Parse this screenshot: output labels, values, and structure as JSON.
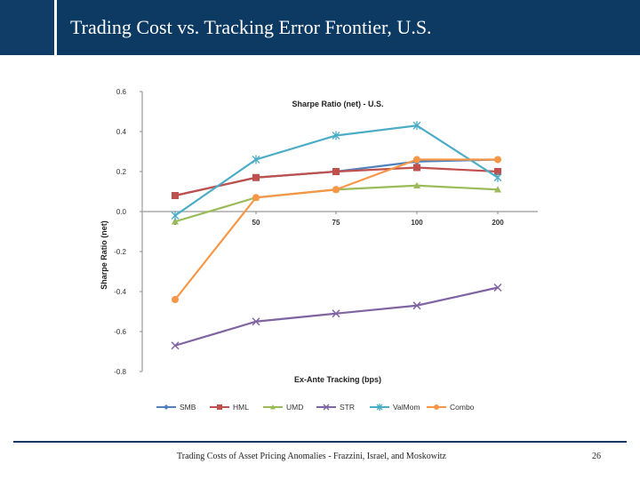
{
  "slide": {
    "title": "Trading Cost vs. Tracking Error Frontier, U.S.",
    "footer": "Trading Costs of Asset Pricing Anomalies - Frazzini, Israel, and Moskowitz",
    "page_number": "26"
  },
  "chart_data": {
    "type": "line",
    "title": "Sharpe Ratio (net) - U.S.",
    "xlabel": "Ex-Ante Tracking (bps)",
    "ylabel": "Sharpe Ratio (net)",
    "categories": [
      "0",
      "50",
      "75",
      "100",
      "200"
    ],
    "ylim": [
      -0.8,
      0.6
    ],
    "yticks": [
      "0.6",
      "0.4",
      "0.2",
      "0.0",
      "-0.2",
      "-0.4",
      "-0.6",
      "-0.8"
    ],
    "ytick_values": [
      0.6,
      0.4,
      0.2,
      0.0,
      -0.2,
      -0.4,
      -0.6,
      -0.8
    ],
    "grid": false,
    "legend_position": "bottom",
    "series": [
      {
        "name": "SMB",
        "values": [
          0.08,
          0.17,
          0.2,
          0.25,
          0.26
        ],
        "color": "#4f81bd",
        "marker": "diamond"
      },
      {
        "name": "HML",
        "values": [
          0.08,
          0.17,
          0.2,
          0.22,
          0.2
        ],
        "color": "#c0504d",
        "marker": "square"
      },
      {
        "name": "UMD",
        "values": [
          -0.05,
          0.07,
          0.11,
          0.13,
          0.11
        ],
        "color": "#9bbb59",
        "marker": "triangle"
      },
      {
        "name": "STR",
        "values": [
          -0.67,
          -0.55,
          -0.51,
          -0.47,
          -0.38
        ],
        "color": "#8064a2",
        "marker": "x"
      },
      {
        "name": "ValMom",
        "values": [
          -0.02,
          0.26,
          0.38,
          0.43,
          0.17
        ],
        "color": "#4bacc6",
        "marker": "star"
      },
      {
        "name": "Combo",
        "values": [
          -0.44,
          0.07,
          0.11,
          0.26,
          0.26
        ],
        "color": "#f79646",
        "marker": "circle"
      }
    ]
  }
}
